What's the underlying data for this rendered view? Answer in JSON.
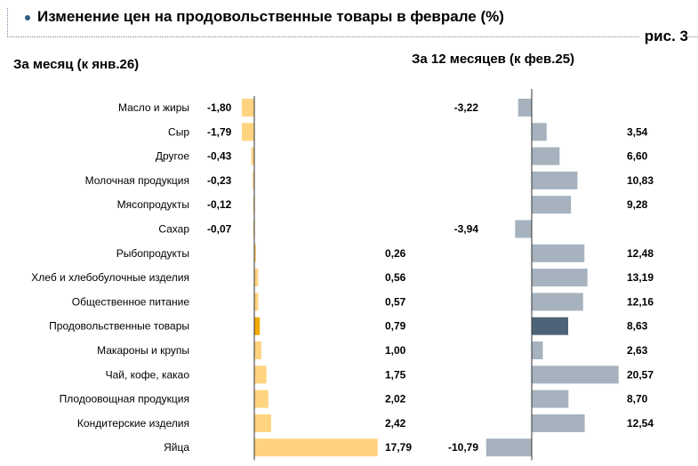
{
  "header": {
    "title": "Изменение цен на продовольственные товары в феврале (%)",
    "figure_label": "рис. 3"
  },
  "colors": {
    "left_bar": "#ffd37f",
    "left_highlight": "#f2a900",
    "right_bar": "#a6b3be",
    "right_highlight": "#4d6478",
    "axis": "#333333"
  },
  "chart_data": [
    {
      "type": "bar",
      "orientation": "horizontal",
      "title": "За месяц (к янв.26)",
      "categories": [
        "Масло и жиры",
        "Сыр",
        "Другое",
        "Молочная продукция",
        "Мясопродукты",
        "Сахар",
        "Рыбопродукты",
        "Хлеб и хлебобулочные изделия",
        "Общественное питание",
        "Продовольственные товары",
        "Макароны и крупы",
        "Чай, кофе, какао",
        "Плодоовощная продукция",
        "Кондитерские изделия",
        "Яйца"
      ],
      "values": [
        -1.8,
        -1.79,
        -0.43,
        -0.23,
        -0.12,
        -0.07,
        0.26,
        0.56,
        0.57,
        0.79,
        1.0,
        1.75,
        2.02,
        2.42,
        17.79
      ],
      "labels": [
        "-1,80",
        "-1,79",
        "-0,43",
        "-0,23",
        "-0,12",
        "-0,07",
        "0,26",
        "0,56",
        "0,57",
        "0,79",
        "1,00",
        "1,75",
        "2,02",
        "2,42",
        "17,79"
      ],
      "highlight_index": 9
    },
    {
      "type": "bar",
      "orientation": "horizontal",
      "title": "За 12 месяцев (к фев.25)",
      "categories": [
        "Масло и жиры",
        "Сыр",
        "Другое",
        "Молочная продукция",
        "Мясопродукты",
        "Сахар",
        "Рыбопродукты",
        "Хлеб и хлебобулочные изделия",
        "Общественное питание",
        "Продовольственные товары",
        "Макароны и крупы",
        "Чай, кофе, какао",
        "Плодоовощная продукция",
        "Кондитерские изделия",
        "Яйца"
      ],
      "values": [
        -3.22,
        3.54,
        6.6,
        10.83,
        9.28,
        -3.94,
        12.48,
        13.19,
        12.16,
        8.63,
        2.63,
        20.57,
        8.7,
        12.54,
        -10.79
      ],
      "labels": [
        "-3,22",
        "3,54",
        "6,60",
        "10,83",
        "9,28",
        "-3,94",
        "12,48",
        "13,19",
        "12,16",
        "8,63",
        "2,63",
        "20,57",
        "8,70",
        "12,54",
        "-10,79"
      ],
      "highlight_index": 9
    }
  ]
}
